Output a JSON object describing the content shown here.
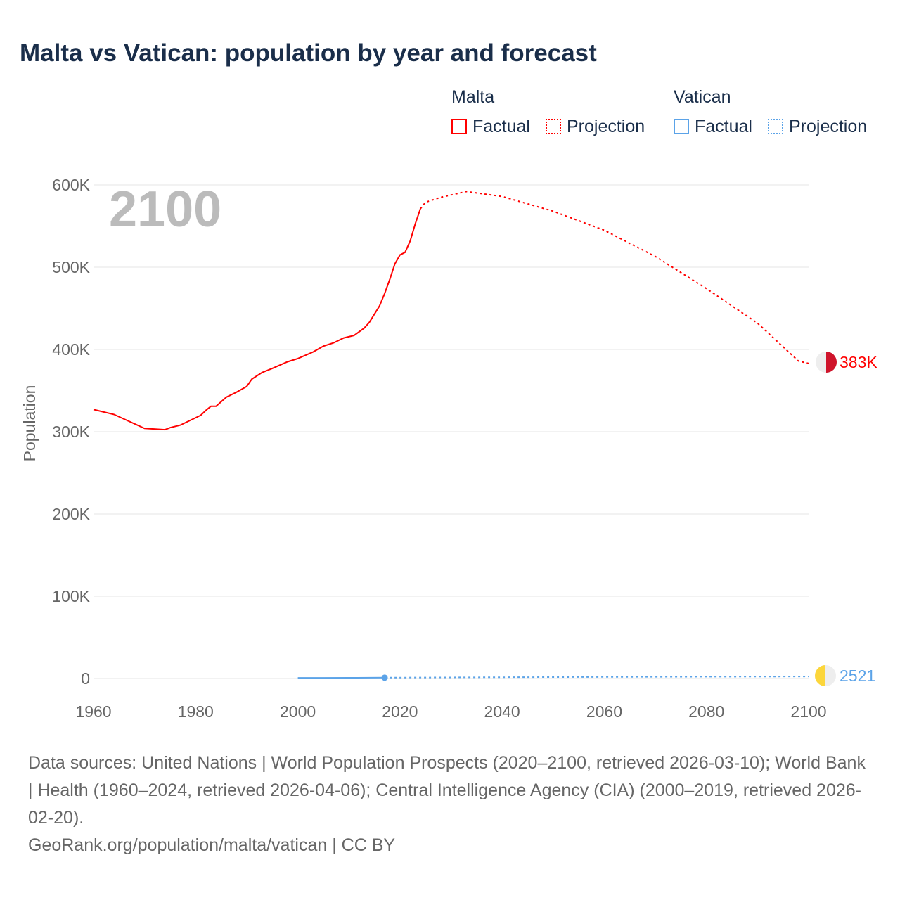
{
  "chart_data": {
    "type": "line",
    "title": "Malta vs Vatican: population by year and forecast",
    "ylabel": "Population",
    "xlabel": "",
    "xlim": [
      1960,
      2100
    ],
    "ylim": [
      0,
      600000
    ],
    "x_ticks": [
      "1960",
      "1980",
      "2000",
      "2020",
      "2040",
      "2060",
      "2080",
      "2100"
    ],
    "y_ticks": [
      "0",
      "100K",
      "200K",
      "300K",
      "400K",
      "500K",
      "600K"
    ],
    "year_overlay": "2100",
    "legend": {
      "groups": [
        {
          "name": "Malta",
          "items": [
            "Factual",
            "Projection"
          ]
        },
        {
          "name": "Vatican",
          "items": [
            "Factual",
            "Projection"
          ]
        }
      ],
      "placement": "top-right"
    },
    "series": [
      {
        "name": "Malta Factual",
        "color": "#ff0000",
        "style": "solid",
        "points": [
          [
            1960,
            327000
          ],
          [
            1964,
            321000
          ],
          [
            1970,
            304000
          ],
          [
            1974,
            302500
          ],
          [
            1975,
            305000
          ],
          [
            1977,
            308000
          ],
          [
            1980,
            317000
          ],
          [
            1981,
            320000
          ],
          [
            1982,
            326000
          ],
          [
            1983,
            331000
          ],
          [
            1984,
            331000
          ],
          [
            1986,
            342000
          ],
          [
            1988,
            348000
          ],
          [
            1990,
            355000
          ],
          [
            1991,
            364000
          ],
          [
            1993,
            372000
          ],
          [
            1995,
            377000
          ],
          [
            1998,
            385000
          ],
          [
            2000,
            389000
          ],
          [
            2003,
            397000
          ],
          [
            2005,
            404000
          ],
          [
            2007,
            408000
          ],
          [
            2009,
            414000
          ],
          [
            2011,
            417000
          ],
          [
            2013,
            426000
          ],
          [
            2014,
            433000
          ],
          [
            2016,
            453000
          ],
          [
            2017,
            468000
          ],
          [
            2018,
            485000
          ],
          [
            2019,
            504000
          ],
          [
            2020,
            515000
          ],
          [
            2021,
            518000
          ],
          [
            2022,
            532000
          ],
          [
            2023,
            553000
          ],
          [
            2024,
            571000
          ]
        ]
      },
      {
        "name": "Malta Projection",
        "color": "#ff0000",
        "style": "dotted",
        "points": [
          [
            2024,
            571000
          ],
          [
            2025,
            579000
          ],
          [
            2028,
            585000
          ],
          [
            2033,
            592000
          ],
          [
            2040,
            586000
          ],
          [
            2050,
            568000
          ],
          [
            2060,
            545000
          ],
          [
            2070,
            513000
          ],
          [
            2080,
            474000
          ],
          [
            2090,
            432000
          ],
          [
            2098,
            386000
          ],
          [
            2100,
            383000
          ]
        ]
      },
      {
        "name": "Vatican Factual",
        "color": "#5ba3e8",
        "style": "solid",
        "points": [
          [
            2000,
            800
          ],
          [
            2005,
            800
          ],
          [
            2010,
            830
          ],
          [
            2017,
            1000
          ]
        ]
      },
      {
        "name": "Vatican Projection",
        "color": "#5ba3e8",
        "style": "dotted",
        "points": [
          [
            2017,
            1000
          ],
          [
            2040,
            1500
          ],
          [
            2060,
            1900
          ],
          [
            2080,
            2200
          ],
          [
            2100,
            2521
          ]
        ]
      }
    ],
    "end_labels": [
      {
        "series": "Malta",
        "text": "383K",
        "color": "#ff0000"
      },
      {
        "series": "Vatican",
        "text": "2521",
        "color": "#5ba3e8"
      }
    ]
  },
  "footer": {
    "sources": "Data sources: United Nations | World Population Prospects (2020–2100, retrieved 2026-03-10); World Bank | Health (1960–2024, retrieved 2026-04-06); Central Intelligence Agency (CIA) (2000–2019, retrieved 2026-02-20).",
    "credit": "GeoRank.org/population/malta/vatican | CC BY"
  }
}
